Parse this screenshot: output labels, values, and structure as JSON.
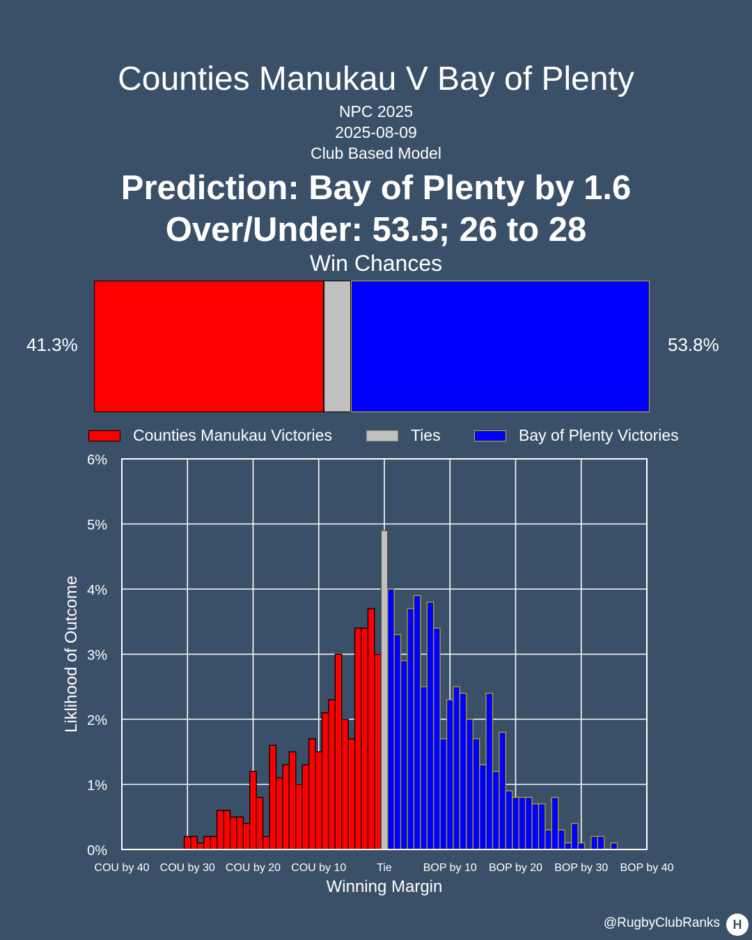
{
  "header": {
    "title": "Counties Manukau V Bay of Plenty",
    "competition": "NPC 2025",
    "date": "2025-08-09",
    "model": "Club Based Model",
    "prediction": "Prediction: Bay of Plenty by 1.6",
    "over_under": "Over/Under: 53.5; 26 to 28"
  },
  "win_chances": {
    "label": "Win Chances",
    "home_pct_label": "41.3%",
    "away_pct_label": "53.8%",
    "home": 41.3,
    "tie": 4.9,
    "away": 53.8,
    "colors": {
      "home": "#ff0000",
      "tie": "#c0c0c0",
      "away": "#0000ff"
    }
  },
  "legend": {
    "home": "Counties Manukau Victories",
    "tie": "Ties",
    "away": "Bay of Plenty Victories"
  },
  "chart_data": {
    "type": "bar",
    "title": "",
    "xlabel": "Winning Margin",
    "ylabel": "Liklihood of Outcome",
    "ylim": [
      0,
      6
    ],
    "xlim": [
      -40,
      40
    ],
    "x_ticks": [
      -40,
      -30,
      -20,
      -10,
      0,
      10,
      20,
      30,
      40
    ],
    "x_tick_labels": [
      "COU by 40",
      "COU by 30",
      "COU by 20",
      "COU by 10",
      "Tie",
      "BOP by 10",
      "BOP by 20",
      "BOP by 30",
      "BOP by 40"
    ],
    "y_ticks": [
      0,
      1,
      2,
      3,
      4,
      5,
      6
    ],
    "y_tick_labels": [
      "0%",
      "1%",
      "2%",
      "3%",
      "4%",
      "5%",
      "6%"
    ],
    "grid": true,
    "series": [
      {
        "name": "Counties Manukau Victories",
        "color": "#ff0000",
        "x": [
          -30,
          -29,
          -28,
          -27,
          -26,
          -25,
          -24,
          -23,
          -22,
          -21,
          -20,
          -19,
          -18,
          -17,
          -16,
          -15,
          -14,
          -13,
          -12,
          -11,
          -10,
          -9,
          -8,
          -7,
          -6,
          -5,
          -4,
          -3,
          -2,
          -1
        ],
        "values": [
          0.2,
          0.2,
          0.1,
          0.2,
          0.2,
          0.6,
          0.6,
          0.5,
          0.5,
          0.4,
          1.2,
          0.8,
          0.2,
          1.6,
          1.1,
          1.3,
          1.5,
          1.0,
          1.3,
          1.7,
          1.5,
          2.1,
          2.3,
          3.0,
          2.0,
          1.7,
          3.4,
          3.4,
          3.7,
          3.0
        ]
      },
      {
        "name": "Ties",
        "color": "#c0c0c0",
        "x": [
          0
        ],
        "values": [
          4.9
        ]
      },
      {
        "name": "Bay of Plenty Victories",
        "color": "#0000ff",
        "x": [
          1,
          2,
          3,
          4,
          5,
          6,
          7,
          8,
          9,
          10,
          11,
          12,
          13,
          14,
          15,
          16,
          17,
          18,
          19,
          20,
          21,
          22,
          23,
          24,
          25,
          26,
          27,
          28,
          29,
          30,
          31,
          32,
          33,
          34,
          35
        ],
        "values": [
          4.0,
          3.3,
          2.9,
          3.7,
          3.9,
          2.5,
          3.8,
          3.4,
          1.7,
          2.3,
          2.5,
          2.4,
          2.0,
          1.7,
          1.3,
          2.4,
          1.2,
          1.8,
          0.9,
          0.8,
          0.8,
          0.8,
          0.7,
          0.7,
          0.3,
          0.8,
          0.3,
          0.1,
          0.4,
          0.1,
          0.0,
          0.2,
          0.2,
          0.0,
          0.1
        ]
      }
    ]
  },
  "footer": {
    "credit": "@RugbyClubRanks",
    "logo_mark": "H"
  }
}
